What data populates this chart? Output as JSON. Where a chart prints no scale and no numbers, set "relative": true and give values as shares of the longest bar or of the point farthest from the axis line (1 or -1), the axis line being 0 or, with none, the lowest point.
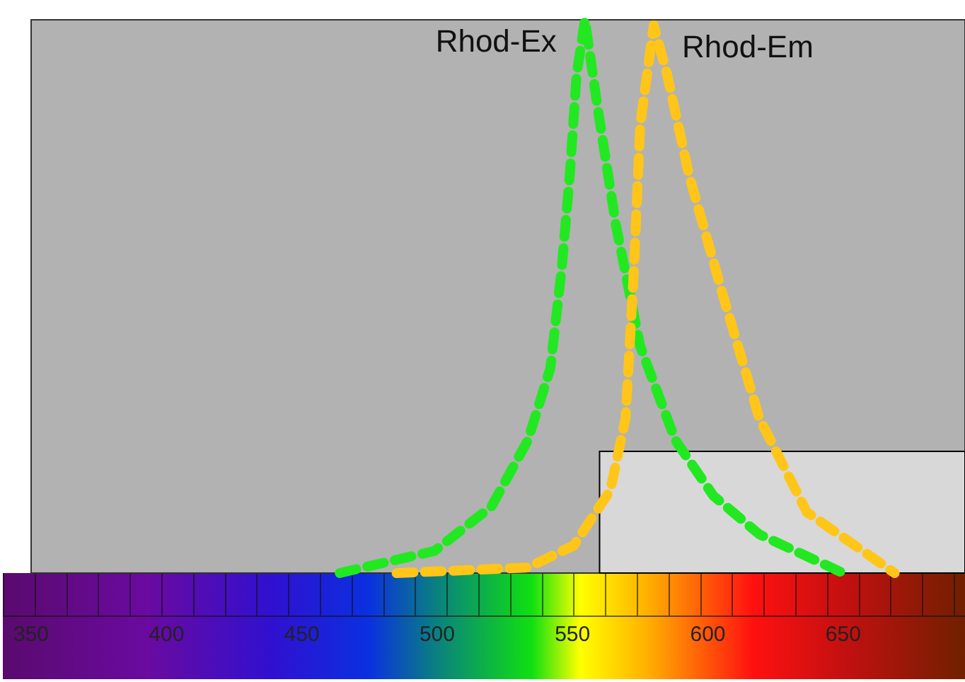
{
  "chart_data": {
    "type": "line",
    "relative": true,
    "xlim": [
      350,
      695
    ],
    "xticks": [
      350,
      400,
      450,
      500,
      550,
      600,
      650
    ],
    "grid": false,
    "bands": [
      {
        "axis": "x",
        "from": 560,
        "to": 695,
        "color": "#d8d8d8"
      }
    ],
    "legend": false,
    "marker": "none",
    "line_style": "dashed",
    "series": [
      {
        "name": "Rhod-Ex",
        "color": "#22e822",
        "x": [
          464,
          499,
          520,
          533.5,
          541.8,
          546,
          549,
          551.5,
          554.6,
          559,
          566,
          575,
          588,
          602,
          619,
          650
        ],
        "values": [
          0,
          0.04,
          0.12,
          0.24,
          0.37,
          0.55,
          0.72,
          0.9,
          1,
          0.85,
          0.63,
          0.41,
          0.24,
          0.14,
          0.07,
          0
        ]
      },
      {
        "name": "Rhod-Em",
        "color": "#ffc619",
        "x": [
          485,
          533.5,
          550.5,
          564,
          569.6,
          572.7,
          575,
          580,
          585,
          593,
          605.7,
          619,
          636.6,
          669
        ],
        "values": [
          0,
          0.01,
          0.05,
          0.15,
          0.28,
          0.55,
          0.81,
          0.99,
          0.9,
          0.72,
          0.5,
          0.28,
          0.11,
          0
        ]
      }
    ]
  }
}
